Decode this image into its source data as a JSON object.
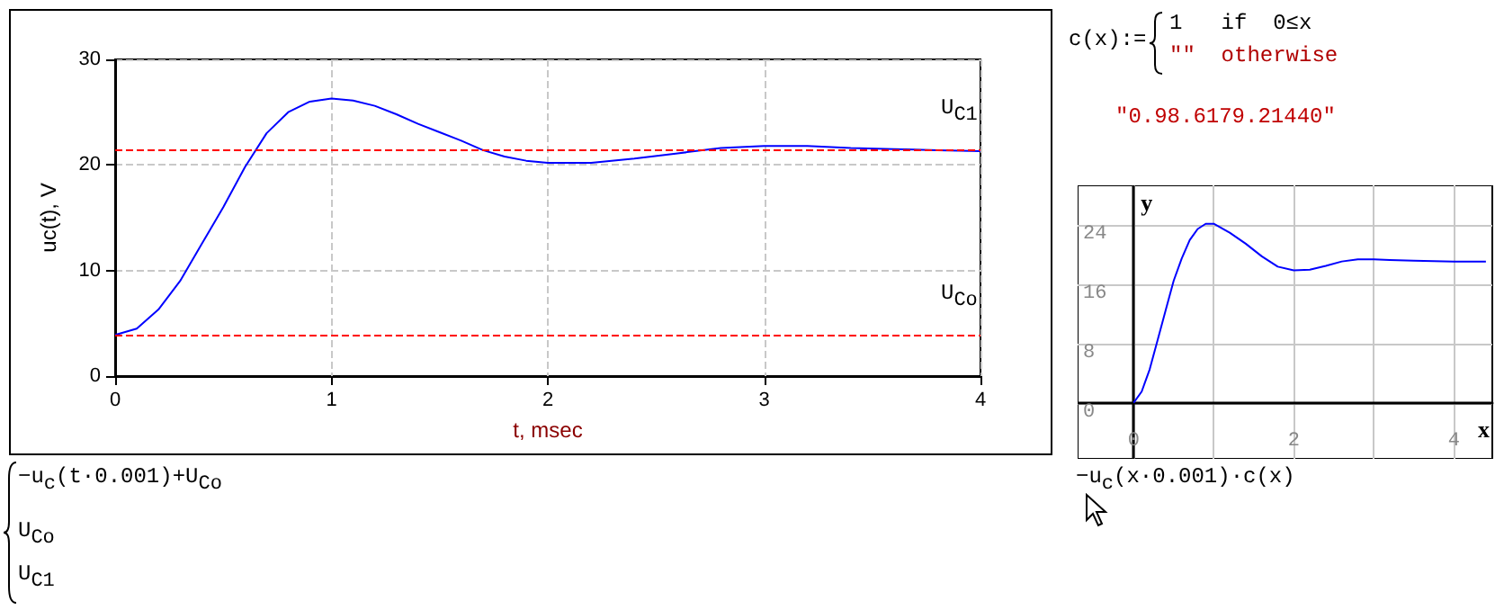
{
  "chart_data": [
    {
      "type": "line",
      "xlabel": "t, msec",
      "ylabel": "uc(t), V",
      "x": [
        0,
        0.1,
        0.2,
        0.3,
        0.4,
        0.5,
        0.6,
        0.7,
        0.8,
        0.9,
        1.0,
        1.1,
        1.2,
        1.3,
        1.4,
        1.5,
        1.6,
        1.7,
        1.8,
        1.9,
        2.0,
        2.2,
        2.4,
        2.6,
        2.8,
        3.0,
        3.2,
        3.4,
        3.6,
        3.8,
        4.0
      ],
      "series": [
        {
          "color": "#0000ff",
          "values": [
            3.9,
            4.5,
            6.3,
            9,
            12.5,
            16,
            19.8,
            23,
            25,
            26,
            26.3,
            26.1,
            25.6,
            24.8,
            23.9,
            23.1,
            22.3,
            21.4,
            20.8,
            20.4,
            20.2,
            20.2,
            20.6,
            21.1,
            21.6,
            21.8,
            21.8,
            21.6,
            21.5,
            21.4,
            21.3
          ]
        }
      ],
      "xlim": [
        0,
        4
      ],
      "ylim": [
        0,
        30
      ],
      "xticks": [
        0,
        1,
        2,
        3,
        4
      ],
      "yticks": [
        0,
        10,
        20,
        30
      ],
      "grid": true,
      "ref_lines": [
        {
          "axis": "y",
          "value": 21.5,
          "label": "U$_{C1}$",
          "color": "#ff0000",
          "line_style": "dashed"
        },
        {
          "axis": "y",
          "value": 3.9,
          "label": "U$_{Co}$",
          "color": "#ff0000",
          "line_style": "dashed"
        }
      ],
      "annotations": [
        "−u$_{c}$(t·0.001)+U$_{Co}$",
        "U$_{Co}$",
        "U$_{C1}$"
      ]
    },
    {
      "type": "line",
      "xlabel": "x",
      "ylabel": "y",
      "x": [
        0,
        0.1,
        0.2,
        0.3,
        0.4,
        0.5,
        0.6,
        0.7,
        0.8,
        0.9,
        1.0,
        1.2,
        1.4,
        1.6,
        1.8,
        2.0,
        2.2,
        2.4,
        2.6,
        2.8,
        3.0,
        3.2,
        3.5,
        4.0,
        4.4
      ],
      "series": [
        {
          "color": "#0000ff",
          "values": [
            0,
            1.5,
            4.5,
            8.5,
            12.5,
            16.5,
            19.5,
            22,
            23.5,
            24.2,
            24.2,
            23,
            21.5,
            19.8,
            18.4,
            17.9,
            18,
            18.5,
            19.1,
            19.4,
            19.4,
            19.3,
            19.2,
            19.1,
            19.1
          ]
        }
      ],
      "xlim": [
        -0.7,
        4.48
      ],
      "ylim": [
        -7.6,
        29.4
      ],
      "xticks": [
        0,
        {
          "value": 1,
          "label": null
        },
        2,
        {
          "value": 3,
          "label": null
        },
        4
      ],
      "yticks": [
        0,
        8,
        16,
        24
      ],
      "grid": true,
      "annotations": [
        "c(x):=",
        "1   if  0≤x",
        "\"\"  otherwise",
        "\"0.98.6179.21440\"",
        "−u$_{c}$(x·0.001)·c(x)"
      ]
    }
  ]
}
